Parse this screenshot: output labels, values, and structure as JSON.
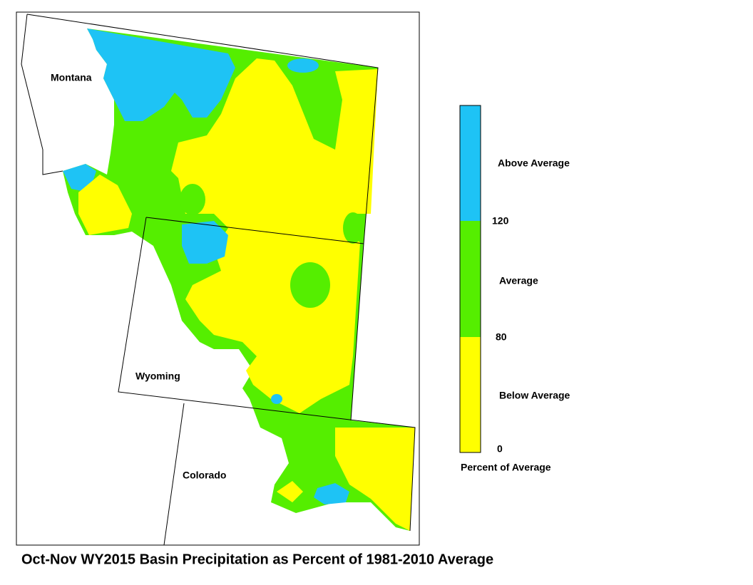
{
  "title": "Oct-Nov WY2015 Basin Precipitation as Percent of 1981-2010 Average",
  "states": [
    "Montana",
    "Wyoming",
    "Colorado"
  ],
  "legend": {
    "title": "Percent of Average",
    "classes": [
      {
        "label": "Above Average",
        "color": "#1ec3f5"
      },
      {
        "label": "Average",
        "color": "#55ee00"
      },
      {
        "label": "Below Average",
        "color": "#ffff00"
      }
    ],
    "breaks": [
      120,
      80,
      0
    ]
  }
}
